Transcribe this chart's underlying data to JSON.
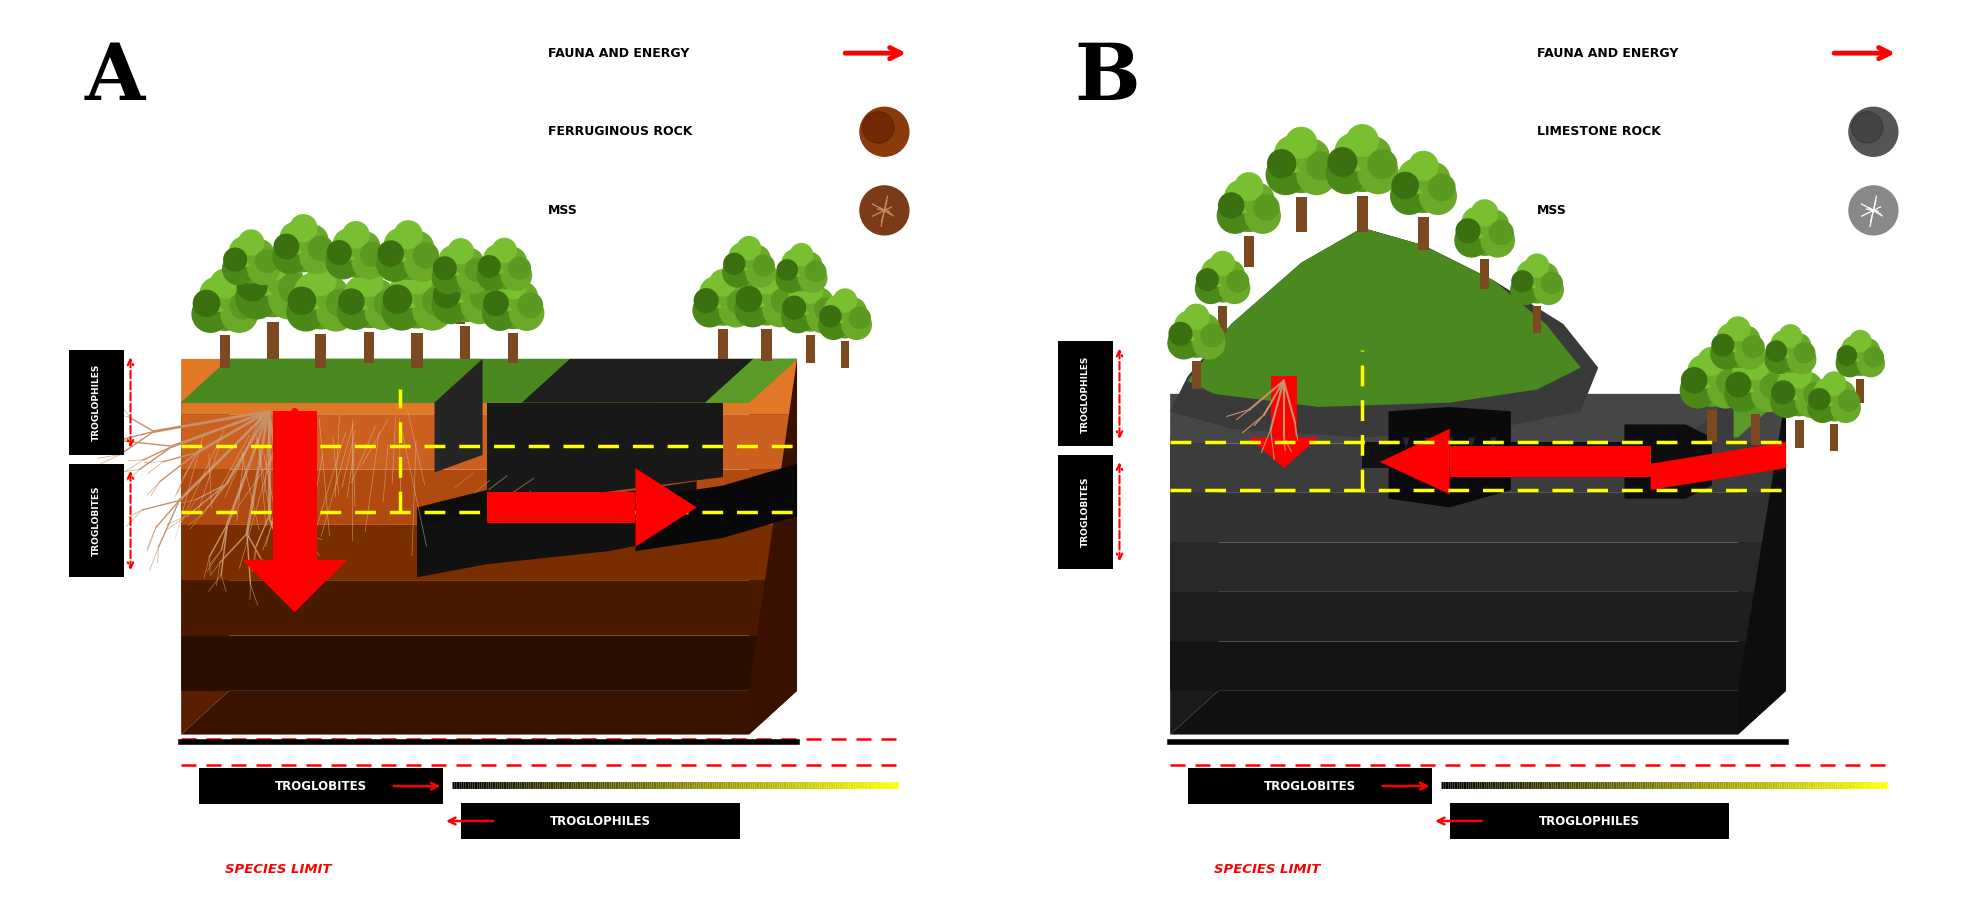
{
  "background_color": "#ffffff",
  "panel_A": {
    "label": "A",
    "legend_fauna": "FAUNA AND ENERGY",
    "legend_rock": "FERRUGINOUS ROCK",
    "legend_mss": "MSS",
    "side_upper": "TROGLOPHILES",
    "side_lower": "TROGLOBITES",
    "bottom_left": "TROGLOBITES",
    "bottom_right": "TROGLOPHILES",
    "bottom_label": "SPECIES LIMIT",
    "rock_color": "#8B3A0A",
    "mss_color": "#7B3A18",
    "ground_colors": [
      "#2a0e00",
      "#4a1a00",
      "#7a2e00",
      "#b04a10",
      "#cc6020",
      "#e07828"
    ],
    "ground_side_color": "#3a1200",
    "ground_front_color": "#5a1e00",
    "cave_color": "#1a1a1a",
    "grass_color": "#4a8820",
    "grass_color2": "#5a9a28"
  },
  "panel_B": {
    "label": "B",
    "legend_fauna": "FAUNA AND ENERGY",
    "legend_rock": "LIMESTONE ROCK",
    "legend_mss": "MSS",
    "side_upper": "TROGLOPHILES",
    "side_lower": "TROGLOBITES",
    "bottom_left": "TROGLOBITES",
    "bottom_right": "TROGLOPHILES",
    "bottom_label": "SPECIES LIMIT",
    "rock_color": "#555555",
    "mss_color": "#888888",
    "ground_colors": [
      "#141414",
      "#1e1e1e",
      "#282828",
      "#323232",
      "#3c3c3c",
      "#464646"
    ],
    "ground_side_color": "#111111",
    "ground_front_color": "#1a1a1a",
    "cave_color": "#0a0a0a",
    "grass_color": "#4a8820",
    "grass_color2": "#5a9a28"
  },
  "tree_canopy_colors": [
    "#4a8818",
    "#5a9a20",
    "#6aaa28",
    "#78c030",
    "#3a7010"
  ],
  "trunk_color": "#7b4a20",
  "root_color": "#c8906a",
  "yellow_line": "#ffff00",
  "red_color": "#ff0000",
  "white": "#ffffff",
  "black": "#000000"
}
